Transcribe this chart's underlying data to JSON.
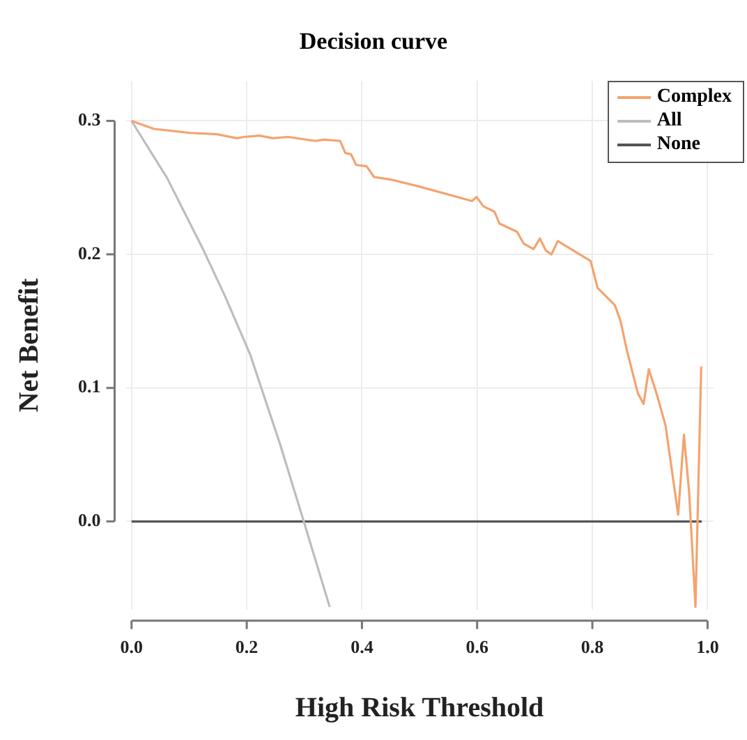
{
  "chart_data": {
    "type": "line",
    "title": "Decision curve",
    "xlabel": "High Risk Threshold",
    "ylabel": "Net Benefit",
    "xlim": [
      -0.01,
      1.01
    ],
    "ylim": [
      -0.066,
      0.33
    ],
    "xticks": [
      {
        "value": 0,
        "label": "0.0"
      },
      {
        "value": 0.2,
        "label": "0.2"
      },
      {
        "value": 0.4,
        "label": "0.4"
      },
      {
        "value": 0.6,
        "label": "0.6"
      },
      {
        "value": 0.8,
        "label": "0.8"
      },
      {
        "value": 1,
        "label": "1.0"
      }
    ],
    "yticks": [
      {
        "value": 0,
        "label": "0.0"
      },
      {
        "value": 0.1,
        "label": "0.1"
      },
      {
        "value": 0.2,
        "label": "0.2"
      },
      {
        "value": 0.3,
        "label": "0.3"
      }
    ],
    "grid": true,
    "legend": "top right",
    "marker": "none",
    "line_style": "solid",
    "series": [
      {
        "name": "Complex",
        "color": "#f4a36e",
        "x": [
          0,
          0.039,
          0.101,
          0.148,
          0.183,
          0.195,
          0.222,
          0.245,
          0.272,
          0.319,
          0.334,
          0.362,
          0.371,
          0.381,
          0.39,
          0.408,
          0.421,
          0.451,
          0.498,
          0.591,
          0.599,
          0.611,
          0.63,
          0.639,
          0.669,
          0.681,
          0.698,
          0.709,
          0.719,
          0.729,
          0.74,
          0.797,
          0.809,
          0.839,
          0.849,
          0.86,
          0.879,
          0.889,
          0.898,
          0.912,
          0.927,
          0.949,
          0.959,
          0.968,
          0.979,
          0.989
        ],
        "values": [
          0.3,
          0.294,
          0.291,
          0.29,
          0.287,
          0.288,
          0.289,
          0.287,
          0.288,
          0.285,
          0.286,
          0.285,
          0.276,
          0.275,
          0.267,
          0.266,
          0.258,
          0.256,
          0.251,
          0.24,
          0.243,
          0.236,
          0.232,
          0.223,
          0.217,
          0.208,
          0.204,
          0.212,
          0.203,
          0.2,
          0.21,
          0.195,
          0.175,
          0.162,
          0.15,
          0.128,
          0.096,
          0.088,
          0.114,
          0.095,
          0.072,
          0.005,
          0.065,
          0.022,
          -0.064,
          0.116
        ]
      },
      {
        "name": "All",
        "color": "#bdbdbd",
        "x": [
          0,
          0.062,
          0.124,
          0.163,
          0.206,
          0.257,
          0.299,
          0.344
        ],
        "values": [
          0.3,
          0.257,
          0.204,
          0.168,
          0.125,
          0.059,
          0,
          -0.064
        ]
      },
      {
        "name": "None",
        "color": "#555555",
        "x": [
          0,
          0.99
        ],
        "values": [
          0,
          0
        ]
      }
    ]
  }
}
